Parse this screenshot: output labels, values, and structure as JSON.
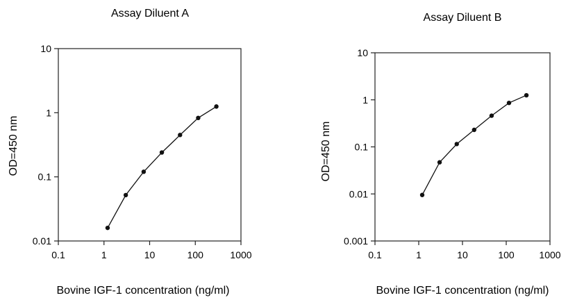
{
  "chart_data": [
    {
      "type": "scatter",
      "title": "Assay Diluent A",
      "xlabel": "Bovine IGF-1 concentration (ng/ml)",
      "ylabel": "OD=450 nm",
      "x_scale": "log",
      "y_scale": "log",
      "xlim": [
        0.1,
        1000
      ],
      "ylim": [
        0.01,
        10
      ],
      "x_ticks": [
        "0.1",
        "1",
        "10",
        "100",
        "1000"
      ],
      "y_ticks": [
        "0.01",
        "0.1",
        "1",
        "10"
      ],
      "grid": false,
      "legend": "none",
      "series": [
        {
          "x": [
            1.2,
            3.0,
            7.4,
            18.5,
            46.3,
            115.7,
            289.3
          ],
          "y": [
            0.016,
            0.052,
            0.12,
            0.24,
            0.45,
            0.83,
            1.25
          ]
        }
      ]
    },
    {
      "type": "scatter",
      "title": "Assay Diluent B",
      "xlabel": "Bovine IGF-1 concentration (ng/ml)",
      "ylabel": "OD=450 nm",
      "x_scale": "log",
      "y_scale": "log",
      "xlim": [
        0.1,
        1000
      ],
      "ylim": [
        0.001,
        10
      ],
      "x_ticks": [
        "0.1",
        "1",
        "10",
        "100",
        "1000"
      ],
      "y_ticks": [
        "0.001",
        "0.01",
        "0.1",
        "1",
        "10"
      ],
      "grid": false,
      "legend": "none",
      "series": [
        {
          "x": [
            1.2,
            3.0,
            7.4,
            18.5,
            46.3,
            115.7,
            289.3
          ],
          "y": [
            0.0095,
            0.047,
            0.115,
            0.23,
            0.46,
            0.86,
            1.25
          ]
        }
      ]
    }
  ]
}
